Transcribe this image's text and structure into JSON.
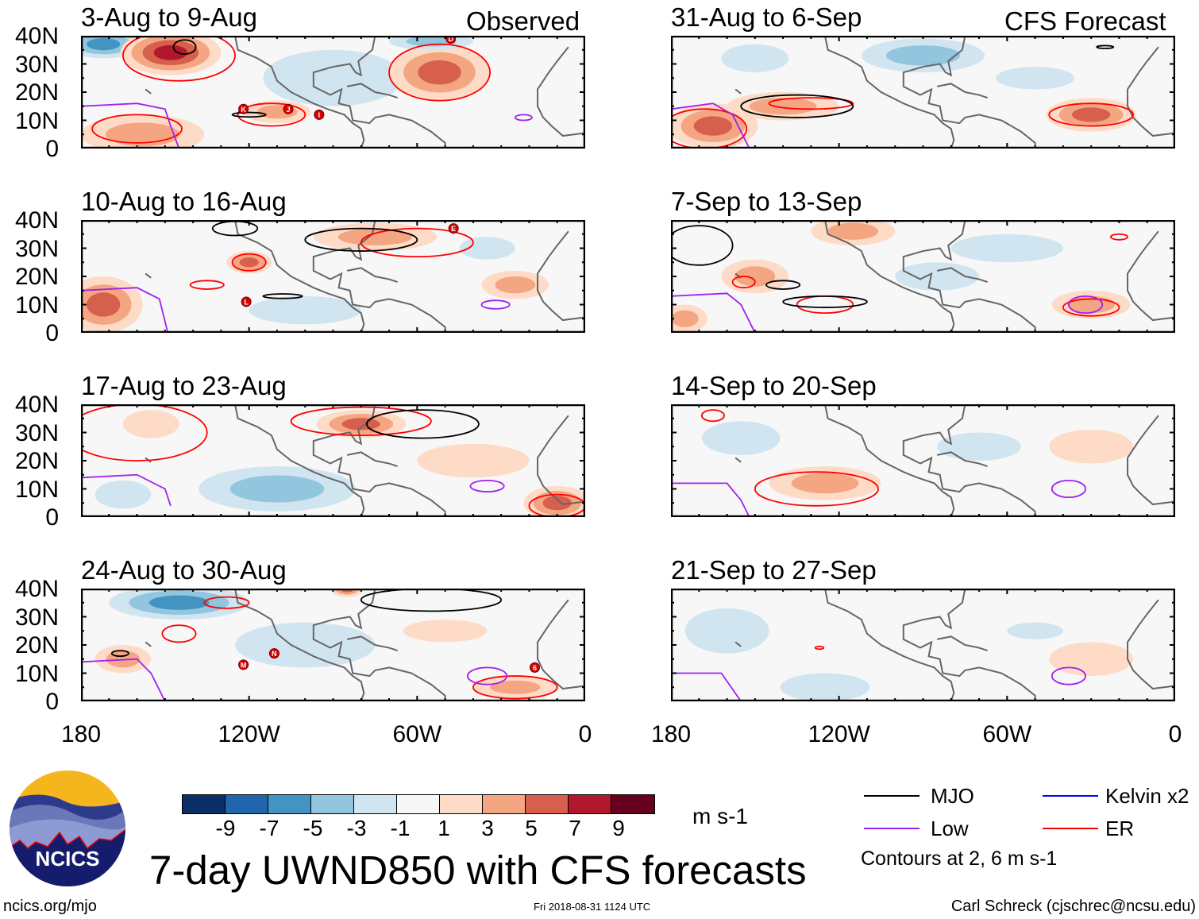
{
  "header": {
    "observed_label": "Observed",
    "forecast_label": "CFS Forecast"
  },
  "lat_labels": [
    "40N",
    "30N",
    "20N",
    "10N",
    "0"
  ],
  "lon_labels": [
    "180",
    "120W",
    "60W",
    "0"
  ],
  "colors": {
    "mjo": "#000000",
    "low": "#a020f0",
    "kelvin": "#0000ff",
    "er": "#ff0000"
  },
  "chart_data": {
    "type": "heatmap",
    "title": "7-day UWND850 with CFS forecasts",
    "units": "m s-1",
    "lon_range": [
      -180,
      0
    ],
    "lat_range": [
      0,
      40
    ],
    "colorbar": {
      "ticks": [
        "-9",
        "-7",
        "-5",
        "-3",
        "-1",
        "1",
        "3",
        "5",
        "7",
        "9"
      ],
      "colors": [
        "#0a2f66",
        "#2166ac",
        "#4393c3",
        "#92c5de",
        "#d1e5f0",
        "#f7f7f7",
        "#fddbc7",
        "#f4a582",
        "#d6604d",
        "#b2182b",
        "#67001f"
      ]
    },
    "panels": [
      {
        "title": "3-Aug to 9-Aug",
        "column": "observed",
        "anomalies": [
          {
            "lon": -172,
            "lat": 37,
            "rx": 14,
            "ry": 5,
            "v": -6
          },
          {
            "lon": -90,
            "lat": 25,
            "rx": 25,
            "ry": 10,
            "v": -2
          },
          {
            "lon": -148,
            "lat": 34,
            "rx": 18,
            "ry": 8,
            "v": 8
          },
          {
            "lon": -52,
            "lat": 27,
            "rx": 18,
            "ry": 10,
            "v": 7
          },
          {
            "lon": -158,
            "lat": 5,
            "rx": 22,
            "ry": 7,
            "v": 5
          },
          {
            "lon": -110,
            "lat": 13,
            "rx": 12,
            "ry": 4,
            "v": 4
          },
          {
            "lon": -55,
            "lat": 38,
            "rx": 15,
            "ry": 3,
            "v": -5
          }
        ],
        "er": [
          {
            "lon": -145,
            "lat": 33,
            "rx": 20,
            "ry": 9
          },
          {
            "lon": -52,
            "lat": 27,
            "rx": 18,
            "ry": 10
          },
          {
            "lon": -112,
            "lat": 12,
            "rx": 12,
            "ry": 4
          },
          {
            "lon": -160,
            "lat": 7,
            "rx": 16,
            "ry": 5
          }
        ],
        "mjo": [
          {
            "lon": -143,
            "lat": 36,
            "rx": 4,
            "ry": 2.5
          },
          {
            "lon": -120,
            "lat": 12,
            "rx": 6,
            "ry": 0.8
          }
        ],
        "low": [
          {
            "lon": -22,
            "lat": 11,
            "rx": 3,
            "ry": 1
          }
        ],
        "low_line": [
          [
            -180,
            15
          ],
          [
            -160,
            16
          ],
          [
            -150,
            14
          ],
          [
            -148,
            8
          ],
          [
            -145,
            0
          ]
        ],
        "storms": [
          {
            "label": "D",
            "lon": -48,
            "lat": 39
          },
          {
            "label": "K",
            "lon": -122,
            "lat": 14
          },
          {
            "label": "J",
            "lon": -106,
            "lat": 14
          },
          {
            "label": "I",
            "lon": -95,
            "lat": 12
          }
        ]
      },
      {
        "title": "10-Aug to 16-Aug",
        "column": "observed",
        "anomalies": [
          {
            "lon": -172,
            "lat": 10,
            "rx": 14,
            "ry": 10,
            "v": 6
          },
          {
            "lon": -120,
            "lat": 25,
            "rx": 8,
            "ry": 4,
            "v": 7
          },
          {
            "lon": -75,
            "lat": 34,
            "rx": 22,
            "ry": 5,
            "v": 5
          },
          {
            "lon": -25,
            "lat": 17,
            "rx": 12,
            "ry": 5,
            "v": 4
          },
          {
            "lon": -35,
            "lat": 30,
            "rx": 10,
            "ry": 4,
            "v": -3
          },
          {
            "lon": -100,
            "lat": 8,
            "rx": 20,
            "ry": 5,
            "v": -2
          }
        ],
        "er": [
          {
            "lon": -60,
            "lat": 32,
            "rx": 20,
            "ry": 5
          },
          {
            "lon": -120,
            "lat": 25,
            "rx": 6,
            "ry": 3
          },
          {
            "lon": -135,
            "lat": 17,
            "rx": 6,
            "ry": 1.5
          }
        ],
        "mjo": [
          {
            "lon": -80,
            "lat": 33,
            "rx": 20,
            "ry": 4
          },
          {
            "lon": -125,
            "lat": 37,
            "rx": 8,
            "ry": 2.5
          },
          {
            "lon": -108,
            "lat": 13,
            "rx": 7,
            "ry": 0.8
          }
        ],
        "low": [
          {
            "lon": -32,
            "lat": 10,
            "rx": 5,
            "ry": 1.5
          }
        ],
        "low_line": [
          [
            -180,
            15
          ],
          [
            -160,
            16
          ],
          [
            -152,
            12
          ],
          [
            -149,
            0
          ]
        ],
        "storms": [
          {
            "label": "E",
            "lon": -47,
            "lat": 37
          },
          {
            "label": "L",
            "lon": -121,
            "lat": 11
          }
        ]
      },
      {
        "title": "17-Aug to 23-Aug",
        "column": "observed",
        "anomalies": [
          {
            "lon": -110,
            "lat": 10,
            "rx": 28,
            "ry": 8,
            "v": -5
          },
          {
            "lon": -80,
            "lat": 33,
            "rx": 16,
            "ry": 5,
            "v": 6
          },
          {
            "lon": -10,
            "lat": 5,
            "rx": 12,
            "ry": 6,
            "v": 6
          },
          {
            "lon": -155,
            "lat": 33,
            "rx": 10,
            "ry": 5,
            "v": 3
          },
          {
            "lon": -165,
            "lat": 8,
            "rx": 10,
            "ry": 5,
            "v": -3
          },
          {
            "lon": -40,
            "lat": 20,
            "rx": 20,
            "ry": 6,
            "v": 2
          }
        ],
        "er": [
          {
            "lon": -80,
            "lat": 34,
            "rx": 25,
            "ry": 5
          },
          {
            "lon": -10,
            "lat": 4,
            "rx": 10,
            "ry": 4
          },
          {
            "lon": -160,
            "lat": 30,
            "rx": 25,
            "ry": 10
          }
        ],
        "mjo": [
          {
            "lon": -58,
            "lat": 33,
            "rx": 20,
            "ry": 5
          }
        ],
        "low": [
          {
            "lon": -35,
            "lat": 11,
            "rx": 6,
            "ry": 2
          }
        ],
        "low_line": [
          [
            -180,
            14
          ],
          [
            -160,
            15
          ],
          [
            -150,
            10
          ],
          [
            -148,
            4
          ]
        ],
        "storms": []
      },
      {
        "title": "24-Aug to 30-Aug",
        "column": "observed",
        "anomalies": [
          {
            "lon": -145,
            "lat": 35,
            "rx": 25,
            "ry": 6,
            "v": -7
          },
          {
            "lon": -165,
            "lat": 15,
            "rx": 10,
            "ry": 5,
            "v": 5
          },
          {
            "lon": -25,
            "lat": 5,
            "rx": 15,
            "ry": 4,
            "v": 5
          },
          {
            "lon": -85,
            "lat": 40,
            "rx": 6,
            "ry": 3,
            "v": 7
          },
          {
            "lon": -100,
            "lat": 20,
            "rx": 25,
            "ry": 8,
            "v": -2
          },
          {
            "lon": -50,
            "lat": 25,
            "rx": 15,
            "ry": 4,
            "v": 2
          }
        ],
        "er": [
          {
            "lon": -128,
            "lat": 35,
            "rx": 8,
            "ry": 2
          },
          {
            "lon": -145,
            "lat": 24,
            "rx": 6,
            "ry": 3
          },
          {
            "lon": -25,
            "lat": 5,
            "rx": 15,
            "ry": 4
          }
        ],
        "mjo": [
          {
            "lon": -55,
            "lat": 36,
            "rx": 25,
            "ry": 4
          },
          {
            "lon": -166,
            "lat": 17,
            "rx": 3,
            "ry": 1
          }
        ],
        "low": [
          {
            "lon": -35,
            "lat": 9,
            "rx": 7,
            "ry": 3
          }
        ],
        "low_line": [
          [
            -180,
            14
          ],
          [
            -160,
            15
          ],
          [
            -155,
            10
          ],
          [
            -150,
            0
          ]
        ],
        "storms": [
          {
            "label": "M",
            "lon": -122,
            "lat": 13
          },
          {
            "label": "N",
            "lon": -111,
            "lat": 17
          },
          {
            "label": "6",
            "lon": -18,
            "lat": 12
          }
        ]
      },
      {
        "title": "31-Aug to 6-Sep",
        "column": "forecast",
        "anomalies": [
          {
            "lon": -165,
            "lat": 8,
            "rx": 16,
            "ry": 8,
            "v": 7
          },
          {
            "lon": -30,
            "lat": 12,
            "rx": 16,
            "ry": 6,
            "v": 7
          },
          {
            "lon": -90,
            "lat": 33,
            "rx": 22,
            "ry": 6,
            "v": -5
          },
          {
            "lon": -50,
            "lat": 25,
            "rx": 14,
            "ry": 4,
            "v": -3
          },
          {
            "lon": -140,
            "lat": 15,
            "rx": 20,
            "ry": 5,
            "v": 4
          },
          {
            "lon": -150,
            "lat": 32,
            "rx": 12,
            "ry": 5,
            "v": -3
          }
        ],
        "er": [
          {
            "lon": -168,
            "lat": 7,
            "rx": 15,
            "ry": 7
          },
          {
            "lon": -30,
            "lat": 12,
            "rx": 15,
            "ry": 4
          },
          {
            "lon": -130,
            "lat": 16,
            "rx": 15,
            "ry": 2
          }
        ],
        "mjo": [
          {
            "lon": -135,
            "lat": 15,
            "rx": 20,
            "ry": 4
          },
          {
            "lon": -25,
            "lat": 36,
            "rx": 3,
            "ry": 0.5
          }
        ],
        "low": [],
        "low_line": [
          [
            -180,
            14
          ],
          [
            -165,
            16
          ],
          [
            -158,
            12
          ],
          [
            -152,
            0
          ]
        ],
        "storms": []
      },
      {
        "title": "7-Sep to 13-Sep",
        "column": "forecast",
        "anomalies": [
          {
            "lon": -115,
            "lat": 36,
            "rx": 15,
            "ry": 5,
            "v": 4
          },
          {
            "lon": -30,
            "lat": 10,
            "rx": 14,
            "ry": 5,
            "v": 5
          },
          {
            "lon": -150,
            "lat": 20,
            "rx": 12,
            "ry": 6,
            "v": 4
          },
          {
            "lon": -175,
            "lat": 5,
            "rx": 8,
            "ry": 5,
            "v": 5
          },
          {
            "lon": -60,
            "lat": 30,
            "rx": 20,
            "ry": 5,
            "v": -2
          },
          {
            "lon": -85,
            "lat": 20,
            "rx": 15,
            "ry": 5,
            "v": -2
          }
        ],
        "er": [
          {
            "lon": -125,
            "lat": 10,
            "rx": 10,
            "ry": 3
          },
          {
            "lon": -154,
            "lat": 18,
            "rx": 4,
            "ry": 2
          },
          {
            "lon": -30,
            "lat": 9,
            "rx": 10,
            "ry": 3
          },
          {
            "lon": -20,
            "lat": 34,
            "rx": 3,
            "ry": 1
          }
        ],
        "mjo": [
          {
            "lon": -170,
            "lat": 31,
            "rx": 12,
            "ry": 7
          },
          {
            "lon": -125,
            "lat": 11,
            "rx": 15,
            "ry": 2
          },
          {
            "lon": -140,
            "lat": 17,
            "rx": 6,
            "ry": 1.5
          }
        ],
        "low": [
          {
            "lon": -32,
            "lat": 10,
            "rx": 6,
            "ry": 3
          }
        ],
        "low_line": [
          [
            -180,
            13
          ],
          [
            -160,
            14
          ],
          [
            -155,
            10
          ],
          [
            -150,
            0
          ]
        ],
        "storms": []
      },
      {
        "title": "14-Sep to 20-Sep",
        "column": "forecast",
        "anomalies": [
          {
            "lon": -125,
            "lat": 12,
            "rx": 20,
            "ry": 6,
            "v": 4
          },
          {
            "lon": -70,
            "lat": 25,
            "rx": 15,
            "ry": 5,
            "v": -2
          },
          {
            "lon": -155,
            "lat": 28,
            "rx": 14,
            "ry": 6,
            "v": -2
          },
          {
            "lon": -30,
            "lat": 25,
            "rx": 15,
            "ry": 6,
            "v": 2
          }
        ],
        "er": [
          {
            "lon": -128,
            "lat": 10,
            "rx": 22,
            "ry": 6
          },
          {
            "lon": -165,
            "lat": 36,
            "rx": 4,
            "ry": 2
          }
        ],
        "mjo": [],
        "low": [
          {
            "lon": -38,
            "lat": 10,
            "rx": 6,
            "ry": 3
          }
        ],
        "low_line": [
          [
            -180,
            12
          ],
          [
            -160,
            12
          ],
          [
            -155,
            6
          ],
          [
            -152,
            0
          ]
        ],
        "storms": []
      },
      {
        "title": "21-Sep to 27-Sep",
        "column": "forecast",
        "anomalies": [
          {
            "lon": -125,
            "lat": 5,
            "rx": 16,
            "ry": 5,
            "v": -3
          },
          {
            "lon": -50,
            "lat": 25,
            "rx": 10,
            "ry": 3,
            "v": -3
          },
          {
            "lon": -160,
            "lat": 25,
            "rx": 15,
            "ry": 8,
            "v": -2
          },
          {
            "lon": -30,
            "lat": 15,
            "rx": 15,
            "ry": 6,
            "v": 2
          }
        ],
        "er": [
          {
            "lon": -127,
            "lat": 19,
            "rx": 1.5,
            "ry": 0.5
          }
        ],
        "mjo": [],
        "low": [
          {
            "lon": -38,
            "lat": 9,
            "rx": 6,
            "ry": 3
          }
        ],
        "low_line": [
          [
            -180,
            10
          ],
          [
            -162,
            10
          ],
          [
            -155,
            0
          ]
        ],
        "storms": []
      }
    ]
  },
  "legend": {
    "items": [
      {
        "label": "MJO",
        "color_key": "mjo"
      },
      {
        "label": "Kelvin x2",
        "color_key": "kelvin"
      },
      {
        "label": "Low",
        "color_key": "low"
      },
      {
        "label": "ER",
        "color_key": "er"
      }
    ],
    "contour_note": "Contours at 2, 6 m s-1"
  },
  "logo": {
    "text": "NCICS"
  },
  "footer": {
    "url": "ncics.org/mjo",
    "timestamp": "Fri 2018-08-31 1124 UTC",
    "credit": "Carl Schreck (cjschrec@ncsu.edu)"
  }
}
